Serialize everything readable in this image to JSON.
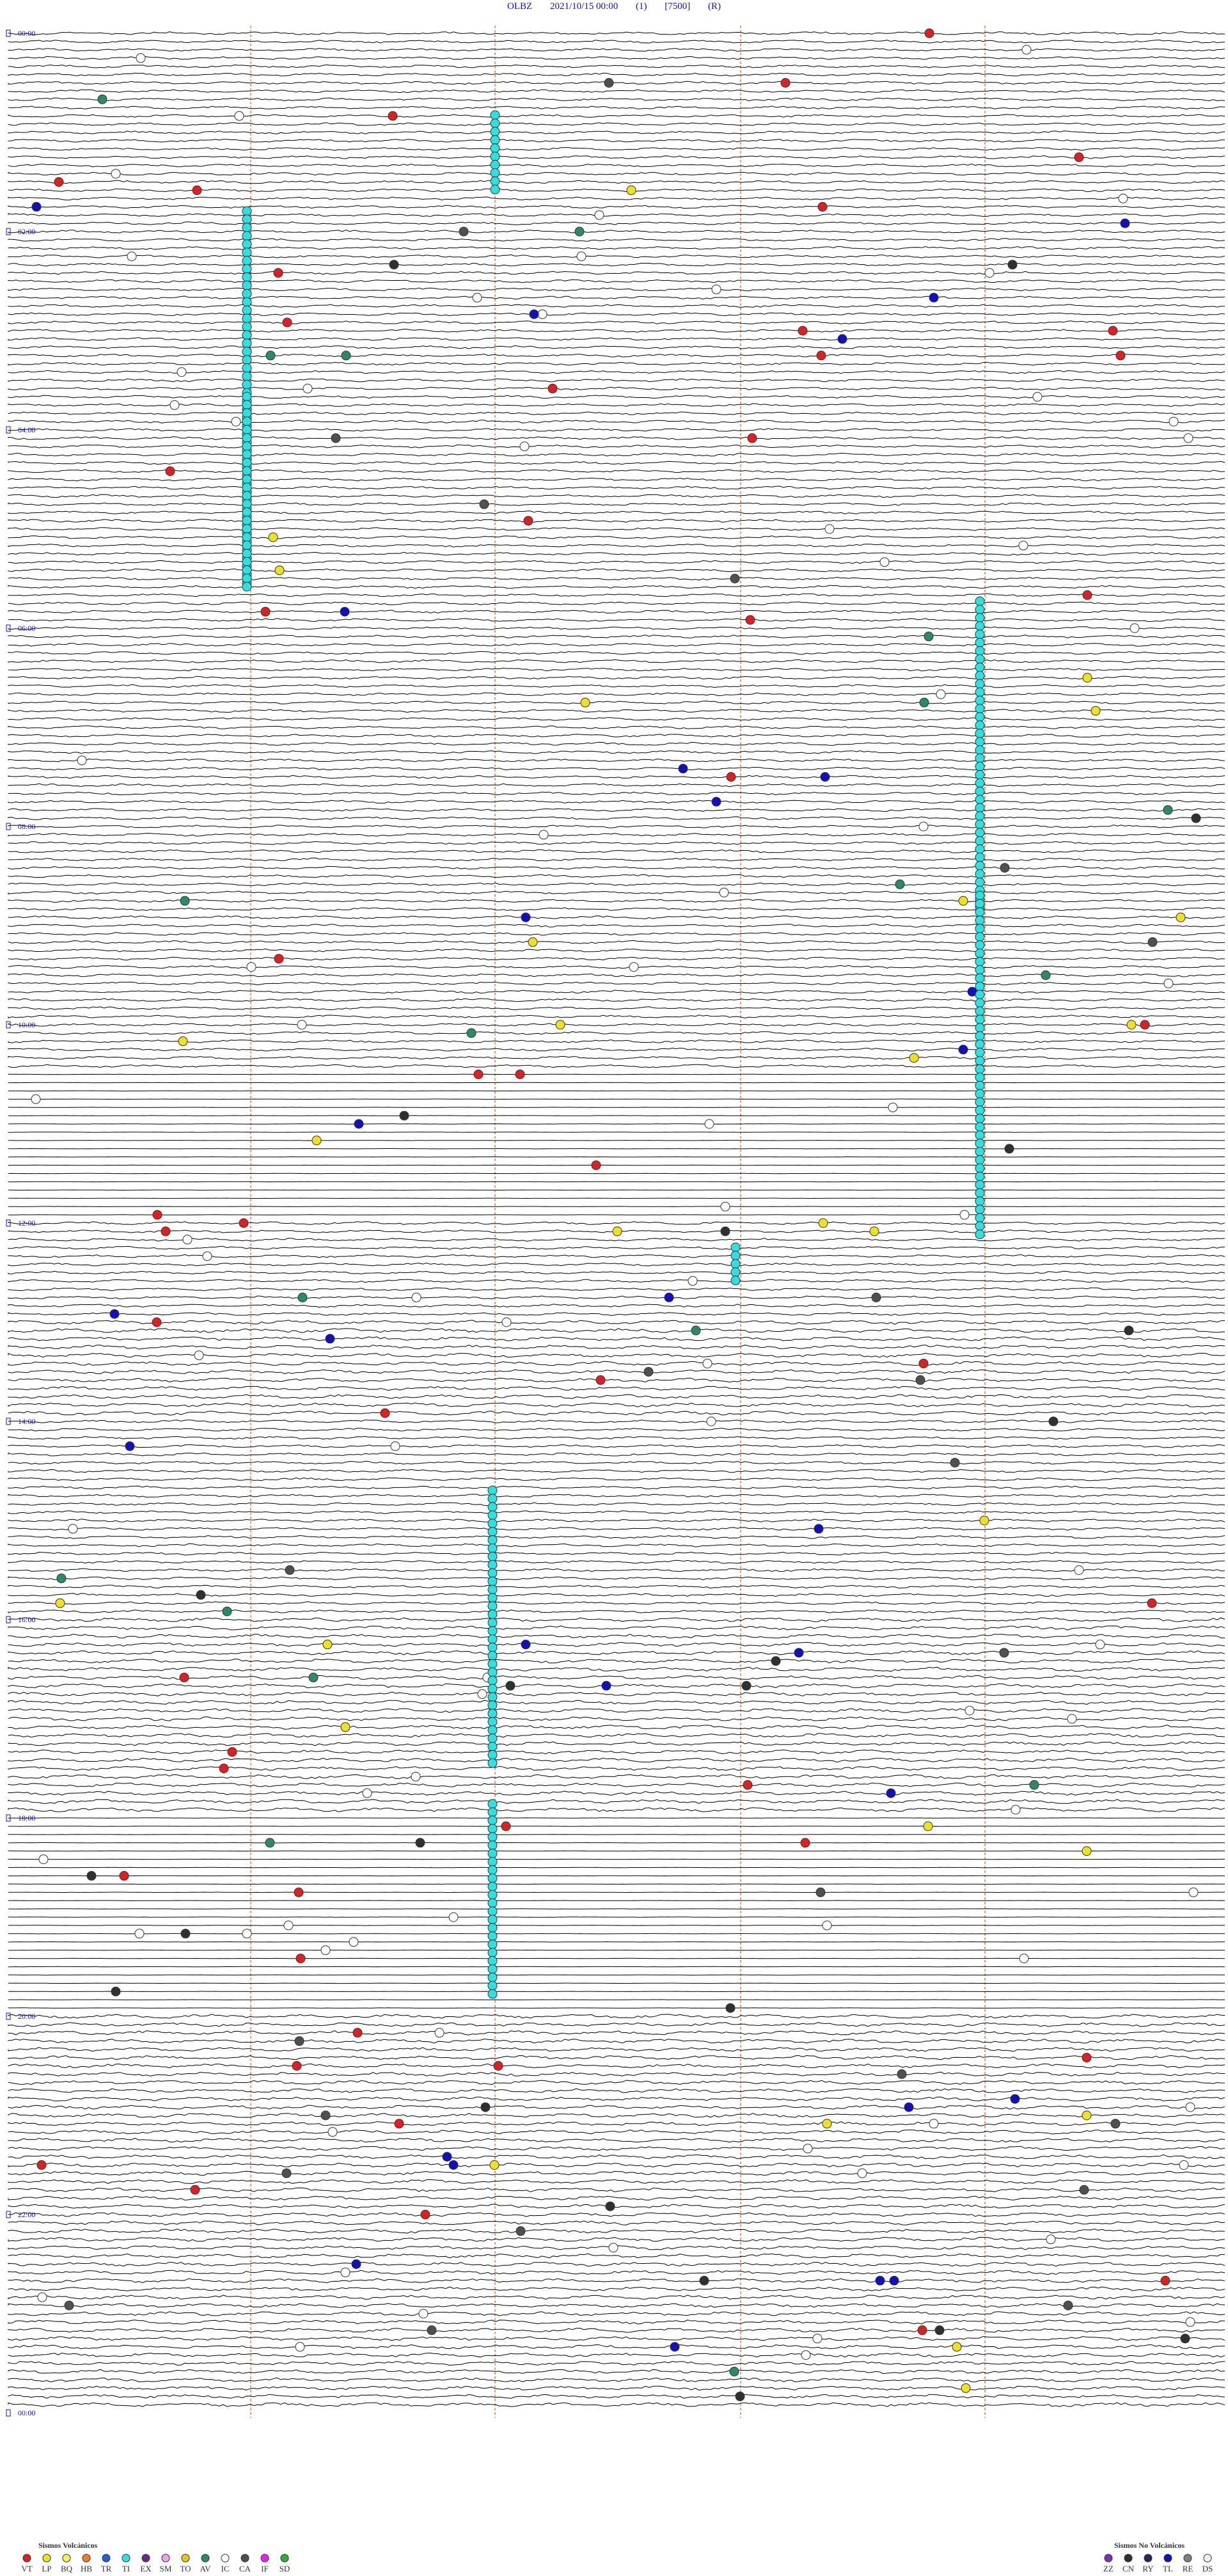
{
  "header": {
    "station": "OLBZ",
    "datetime": "2021/10/15 00:00",
    "channel": "(1)",
    "scale": "[7500]",
    "mode": "(R)"
  },
  "hour_labels": [
    "00:00",
    "02:00",
    "04:00",
    "06:00",
    "08:00",
    "10:00",
    "12:00",
    "14:00",
    "16:00",
    "18:00",
    "20:00",
    "22:00",
    "00:00"
  ],
  "legend": {
    "volcanic": {
      "title": "Sismos Volcánicos",
      "codes": [
        "VT",
        "LP",
        "BQ",
        "HB",
        "TR",
        "TI",
        "EX",
        "SM",
        "TO",
        "AV",
        "IC",
        "CA",
        "IF",
        "SD"
      ],
      "colors": [
        "#e02020",
        "#f0e020",
        "#f8f060",
        "#f08020",
        "#2060e0",
        "#30e0e0",
        "#6a2a8a",
        "#f0a0f0",
        "#f0c020",
        "#2a8a6a",
        "#ffffff",
        "#505050",
        "#f020f0",
        "#30b030"
      ]
    },
    "non_volcanic": {
      "title": "Sismos No Volcánicos",
      "codes": [
        "ZZ",
        "CN",
        "RY",
        "TL",
        "RE",
        "DS"
      ],
      "colors": [
        "#8030c0",
        "#303030",
        "#302060",
        "#1010c0",
        "#808080",
        "#f0f0f0"
      ]
    }
  }
}
